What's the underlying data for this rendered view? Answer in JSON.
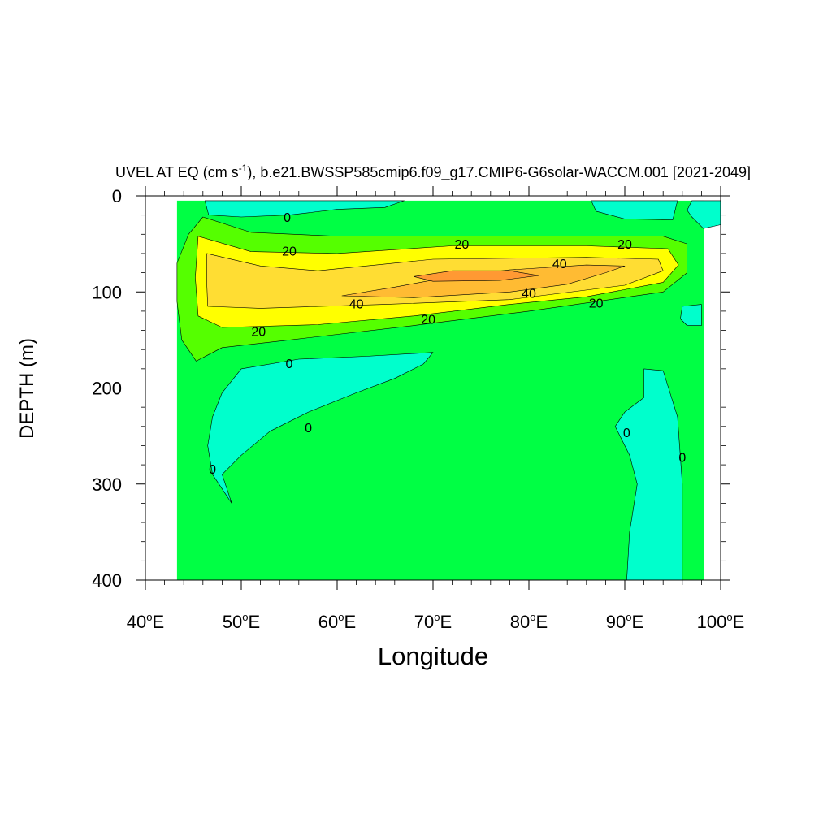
{
  "chart_data": {
    "type": "contour",
    "title": "UVEL AT EQ (cm s-1), b.e21.BWSSP585cmip6.f09_g17.CMIP6-G6solar-WACCM.001 [2021-2049]",
    "title_parts": {
      "pre": "UVEL AT EQ (cm s",
      "sup": "-1",
      "post": "), b.e21.BWSSP585cmip6.f09_g17.CMIP6-G6solar-WACCM.001 [2021-2049]"
    },
    "xlabel": "Longitude",
    "ylabel": "DEPTH (m)",
    "xlim": [
      40,
      100
    ],
    "ylim": [
      400,
      0
    ],
    "x_ticks": [
      {
        "value": 40,
        "num": "40",
        "deg": "o",
        "hemi": "E"
      },
      {
        "value": 50,
        "num": "50",
        "deg": "o",
        "hemi": "E"
      },
      {
        "value": 60,
        "num": "60",
        "deg": "o",
        "hemi": "E"
      },
      {
        "value": 70,
        "num": "70",
        "deg": "o",
        "hemi": "E"
      },
      {
        "value": 80,
        "num": "80",
        "deg": "o",
        "hemi": "E"
      },
      {
        "value": 90,
        "num": "90",
        "deg": "o",
        "hemi": "E"
      },
      {
        "value": 100,
        "num": "100",
        "deg": "o",
        "hemi": "E"
      }
    ],
    "y_ticks": [
      {
        "value": 0,
        "label": "0"
      },
      {
        "value": 100,
        "label": "100"
      },
      {
        "value": 200,
        "label": "200"
      },
      {
        "value": 300,
        "label": "300"
      },
      {
        "value": 400,
        "label": "400"
      }
    ],
    "contour_interval": 10,
    "fill_colors": {
      "lt0": "#00ffcc",
      "0-10": "#00ff44",
      "10-20": "#55ff00",
      "20-30": "#ffff00",
      "30-40": "#ffdd33",
      "40-50": "#ffbb33",
      "50-60": "#ff9933"
    },
    "data_domain": {
      "lon": [
        43.3,
        98.3
      ],
      "depth": [
        5,
        400
      ]
    },
    "regions": [
      {
        "fill": "0-10",
        "points": [
          [
            43.3,
            5
          ],
          [
            98.3,
            5
          ],
          [
            98.3,
            400
          ],
          [
            43.3,
            400
          ]
        ]
      },
      {
        "fill": "lt0",
        "points": [
          [
            46.2,
            5
          ],
          [
            59,
            5
          ],
          [
            67,
            5
          ],
          [
            65,
            12
          ],
          [
            60,
            14
          ],
          [
            55,
            20
          ],
          [
            50,
            22
          ],
          [
            46.6,
            20
          ]
        ]
      },
      {
        "fill": "lt0",
        "points": [
          [
            86.5,
            5
          ],
          [
            95.5,
            5
          ],
          [
            95,
            25
          ],
          [
            90,
            24
          ],
          [
            87,
            16
          ]
        ]
      },
      {
        "fill": "lt0",
        "points": [
          [
            97,
            5
          ],
          [
            100,
            5
          ],
          [
            100,
            30
          ],
          [
            98.2,
            34
          ],
          [
            97,
            22
          ],
          [
            96.5,
            15
          ]
        ]
      },
      {
        "fill": "lt0",
        "points": [
          [
            96,
            115
          ],
          [
            98,
            113
          ],
          [
            98,
            135
          ],
          [
            96.5,
            135
          ],
          [
            95.8,
            128
          ]
        ]
      },
      {
        "fill": "lt0",
        "points": [
          [
            50,
            180
          ],
          [
            56,
            170
          ],
          [
            63,
            167
          ],
          [
            70,
            163
          ],
          [
            69,
            175
          ],
          [
            66,
            190
          ],
          [
            62,
            205
          ],
          [
            57,
            225
          ],
          [
            53,
            245
          ],
          [
            50,
            270
          ],
          [
            48,
            290
          ],
          [
            49,
            320
          ],
          [
            47,
            290
          ],
          [
            46.5,
            260
          ],
          [
            47,
            230
          ],
          [
            48,
            205
          ]
        ]
      },
      {
        "fill": "lt0",
        "points": [
          [
            92,
            180
          ],
          [
            94,
            182
          ],
          [
            95.5,
            230
          ],
          [
            96,
            300
          ],
          [
            96,
            400
          ],
          [
            90.2,
            400
          ],
          [
            90.5,
            350
          ],
          [
            91.3,
            300
          ],
          [
            90.5,
            270
          ],
          [
            89,
            240
          ],
          [
            90,
            225
          ],
          [
            92,
            210
          ]
        ]
      },
      {
        "fill": "10-20",
        "points": [
          [
            46,
            22
          ],
          [
            51,
            38
          ],
          [
            60,
            42
          ],
          [
            80,
            42
          ],
          [
            94,
            42
          ],
          [
            96.5,
            50
          ],
          [
            96.5,
            80
          ],
          [
            94,
            100
          ],
          [
            80,
            120
          ],
          [
            68,
            135
          ],
          [
            55,
            150
          ],
          [
            48,
            158
          ],
          [
            45.3,
            172
          ],
          [
            43.8,
            150
          ],
          [
            43.3,
            110
          ],
          [
            43.3,
            70
          ],
          [
            44.5,
            40
          ]
        ]
      },
      {
        "fill": "20-30",
        "points": [
          [
            45.5,
            42
          ],
          [
            51,
            58
          ],
          [
            60,
            60
          ],
          [
            72,
            52
          ],
          [
            86,
            52
          ],
          [
            94.5,
            55
          ],
          [
            95.6,
            72
          ],
          [
            94,
            90
          ],
          [
            86,
            105
          ],
          [
            78,
            113
          ],
          [
            68,
            125
          ],
          [
            58,
            134
          ],
          [
            48,
            137
          ],
          [
            45.5,
            125
          ],
          [
            45.2,
            85
          ]
        ]
      },
      {
        "fill": "30-40",
        "points": [
          [
            46.4,
            60
          ],
          [
            52,
            73
          ],
          [
            58,
            78
          ],
          [
            70,
            66
          ],
          [
            86,
            64
          ],
          [
            93.5,
            66
          ],
          [
            94,
            78
          ],
          [
            90,
            93
          ],
          [
            78,
            108
          ],
          [
            65,
            113
          ],
          [
            52,
            117
          ],
          [
            46.5,
            115
          ],
          [
            46.4,
            90
          ]
        ]
      },
      {
        "fill": "40-50",
        "points": [
          [
            60.5,
            104
          ],
          [
            66,
            95
          ],
          [
            72,
            84
          ],
          [
            78,
            77
          ],
          [
            86,
            72
          ],
          [
            90,
            73
          ],
          [
            88,
            80
          ],
          [
            84,
            92
          ],
          [
            78,
            100
          ],
          [
            68,
            106
          ]
        ]
      },
      {
        "fill": "50-60",
        "points": [
          [
            68,
            84
          ],
          [
            72,
            78
          ],
          [
            78,
            78
          ],
          [
            81,
            83
          ],
          [
            77,
            88
          ],
          [
            70,
            89
          ]
        ]
      }
    ],
    "contour_labels": [
      {
        "lon": 54.8,
        "depth": 22,
        "text": "0"
      },
      {
        "lon": 55,
        "depth": 57,
        "text": "20"
      },
      {
        "lon": 73,
        "depth": 50,
        "text": "20"
      },
      {
        "lon": 90,
        "depth": 50,
        "text": "20"
      },
      {
        "lon": 83.2,
        "depth": 70,
        "text": "40"
      },
      {
        "lon": 62,
        "depth": 112,
        "text": "40"
      },
      {
        "lon": 80,
        "depth": 101,
        "text": "40"
      },
      {
        "lon": 87,
        "depth": 111,
        "text": "20"
      },
      {
        "lon": 69.5,
        "depth": 128,
        "text": "20"
      },
      {
        "lon": 51.8,
        "depth": 141,
        "text": "20"
      },
      {
        "lon": 55,
        "depth": 174,
        "text": "0"
      },
      {
        "lon": 57,
        "depth": 241,
        "text": "0"
      },
      {
        "lon": 47,
        "depth": 284,
        "text": "0"
      },
      {
        "lon": 90.2,
        "depth": 246,
        "text": "0"
      },
      {
        "lon": 96,
        "depth": 272,
        "text": "0"
      }
    ]
  }
}
